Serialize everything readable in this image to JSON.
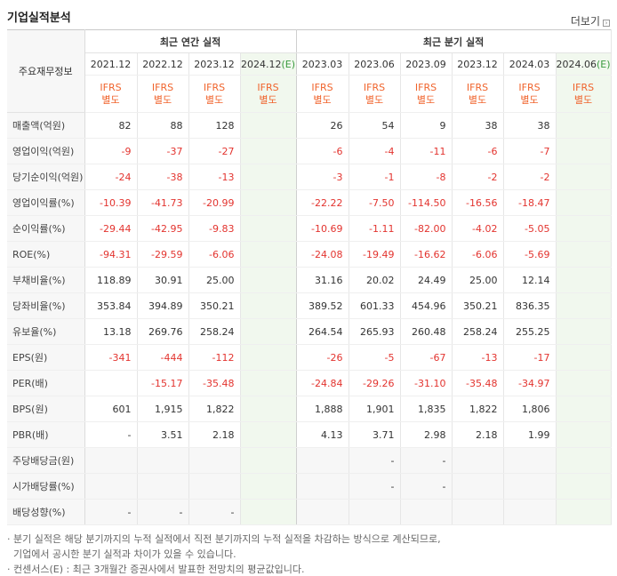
{
  "header": {
    "title": "기업실적분석",
    "more_label": "더보기",
    "more_icon": "arrow-right-icon"
  },
  "table": {
    "stub_label": "주요재무정보",
    "annual_group": "최근 연간 실적",
    "quarter_group": "최근 분기 실적",
    "annual_periods": [
      "2021.12",
      "2022.12",
      "2023.12",
      "2024.12(E)"
    ],
    "quarter_periods": [
      "2023.03",
      "2023.06",
      "2023.09",
      "2023.12",
      "2024.03",
      "2024.06(E)"
    ],
    "basis_line1": "IFRS",
    "basis_line2": "별도",
    "rows": [
      {
        "label": "매출액(억원)",
        "annual": [
          "82",
          "88",
          "128",
          ""
        ],
        "quarter": [
          "26",
          "54",
          "9",
          "38",
          "38",
          ""
        ]
      },
      {
        "label": "영업이익(억원)",
        "annual": [
          "-9",
          "-37",
          "-27",
          ""
        ],
        "quarter": [
          "-6",
          "-4",
          "-11",
          "-6",
          "-7",
          ""
        ]
      },
      {
        "label": "당기순이익(억원)",
        "annual": [
          "-24",
          "-38",
          "-13",
          ""
        ],
        "quarter": [
          "-3",
          "-1",
          "-8",
          "-2",
          "-2",
          ""
        ]
      },
      {
        "label": "영업이익률(%)",
        "annual": [
          "-10.39",
          "-41.73",
          "-20.99",
          ""
        ],
        "quarter": [
          "-22.22",
          "-7.50",
          "-114.50",
          "-16.56",
          "-18.47",
          ""
        ]
      },
      {
        "label": "순이익률(%)",
        "annual": [
          "-29.44",
          "-42.95",
          "-9.83",
          ""
        ],
        "quarter": [
          "-10.69",
          "-1.11",
          "-82.00",
          "-4.02",
          "-5.05",
          ""
        ]
      },
      {
        "label": "ROE(%)",
        "annual": [
          "-94.31",
          "-29.59",
          "-6.06",
          ""
        ],
        "quarter": [
          "-24.08",
          "-19.49",
          "-16.62",
          "-6.06",
          "-5.69",
          ""
        ]
      },
      {
        "label": "부채비율(%)",
        "annual": [
          "118.89",
          "30.91",
          "25.00",
          ""
        ],
        "quarter": [
          "31.16",
          "20.02",
          "24.49",
          "25.00",
          "12.14",
          ""
        ]
      },
      {
        "label": "당좌비율(%)",
        "annual": [
          "353.84",
          "394.89",
          "350.21",
          ""
        ],
        "quarter": [
          "389.52",
          "601.33",
          "454.96",
          "350.21",
          "836.35",
          ""
        ]
      },
      {
        "label": "유보율(%)",
        "annual": [
          "13.18",
          "269.76",
          "258.24",
          ""
        ],
        "quarter": [
          "264.54",
          "265.93",
          "260.48",
          "258.24",
          "255.25",
          ""
        ]
      },
      {
        "label": "EPS(원)",
        "annual": [
          "-341",
          "-444",
          "-112",
          ""
        ],
        "quarter": [
          "-26",
          "-5",
          "-67",
          "-13",
          "-17",
          ""
        ]
      },
      {
        "label": "PER(배)",
        "annual": [
          "",
          "-15.17",
          "-35.48",
          ""
        ],
        "quarter": [
          "-24.84",
          "-29.26",
          "-31.10",
          "-35.48",
          "-34.97",
          ""
        ]
      },
      {
        "label": "BPS(원)",
        "annual": [
          "601",
          "1,915",
          "1,822",
          ""
        ],
        "quarter": [
          "1,888",
          "1,901",
          "1,835",
          "1,822",
          "1,806",
          ""
        ]
      },
      {
        "label": "PBR(배)",
        "annual": [
          "-",
          "3.51",
          "2.18",
          ""
        ],
        "quarter": [
          "4.13",
          "3.71",
          "2.98",
          "2.18",
          "1.99",
          ""
        ]
      },
      {
        "label": "주당배당금(원)",
        "annual": [
          "",
          "",
          "",
          ""
        ],
        "quarter": [
          "",
          "-",
          "-",
          "",
          "",
          ""
        ]
      },
      {
        "label": "시가배당률(%)",
        "annual": [
          "",
          "",
          "",
          ""
        ],
        "quarter": [
          "",
          "-",
          "-",
          "",
          "",
          ""
        ]
      },
      {
        "label": "배당성향(%)",
        "annual": [
          "-",
          "-",
          "-",
          ""
        ],
        "quarter": [
          "",
          "",
          "",
          "",
          "",
          ""
        ]
      }
    ]
  },
  "notes": [
    "· 분기 실적은 해당 분기까지의 누적 실적에서 직전 분기까지의 누적 실적을 차감하는 방식으로 계산되므로,",
    "  기업에서 공시한 분기 실적과 차이가 있을 수 있습니다.",
    "· 컨센서스(E) : 최근 3개월간 증권사에서 발표한 전망치의 평균값입니다."
  ],
  "colors": {
    "negative": "#e3342f",
    "basis": "#f0642d",
    "estimate_bg": "#f1f8ee",
    "estimate_mark": "#3a9b3e"
  }
}
